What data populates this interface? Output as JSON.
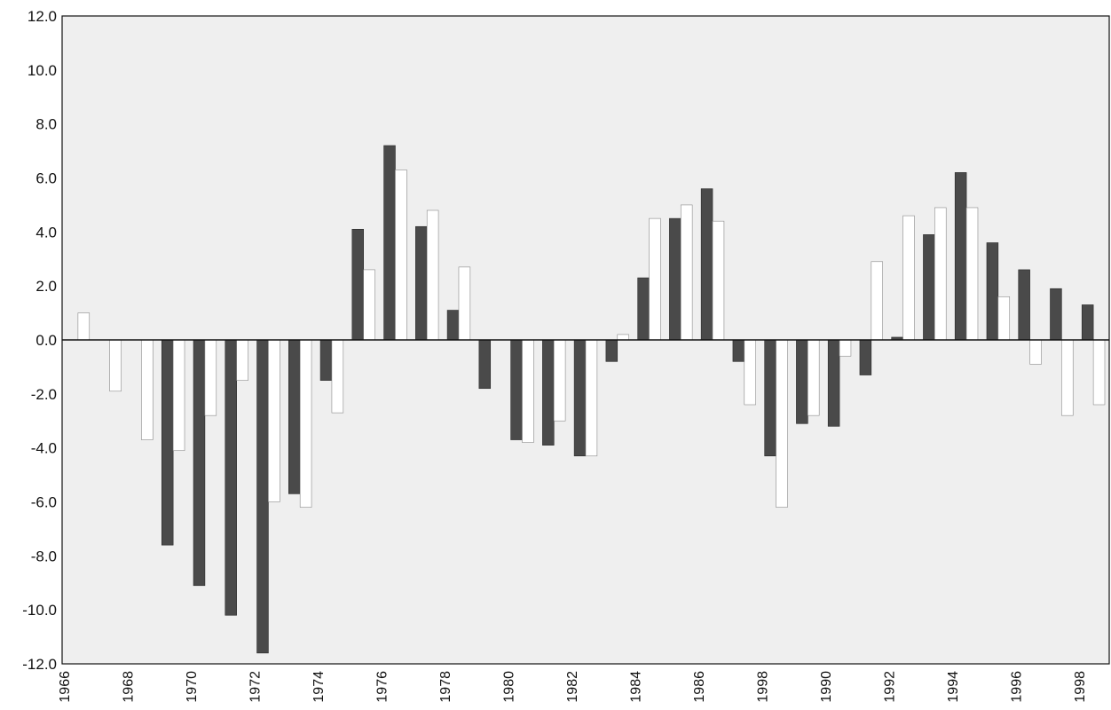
{
  "chart_data": {
    "type": "bar",
    "title": "",
    "xlabel": "",
    "ylabel": "",
    "ylim": [
      -12,
      12
    ],
    "yticks": [
      12,
      10,
      8,
      6,
      4,
      2,
      0,
      -2,
      -4,
      -6,
      -8,
      -10,
      -12
    ],
    "ytick_labels": [
      "12.0",
      "10.0",
      "8.0",
      "6.0",
      "4.0",
      "2.0",
      "0.0",
      "-2.0",
      "-4.0",
      "-6.0",
      "-8.0",
      "-10.0",
      "-12.0"
    ],
    "categories": [
      "1966",
      "1967",
      "1968",
      "1969",
      "1970",
      "1971",
      "1972",
      "1973",
      "1974",
      "1975",
      "1976",
      "1977",
      "1978",
      "1979",
      "1980",
      "1981",
      "1982",
      "1983",
      "1984",
      "1985",
      "1986",
      "1987",
      "1998",
      "1989",
      "1990",
      "1991",
      "1992",
      "1993",
      "1994",
      "1995",
      "1996",
      "1997",
      "1998"
    ],
    "tick_label_indices": [
      0,
      2,
      4,
      6,
      8,
      10,
      12,
      14,
      16,
      18,
      20,
      22,
      24,
      26,
      28,
      30,
      32
    ],
    "series": [
      {
        "color": "#4a4a4a",
        "values": [
          0,
          0,
          0,
          -7.6,
          -9.1,
          -10.2,
          -11.6,
          -5.7,
          -1.5,
          4.1,
          7.2,
          4.2,
          1.1,
          -1.8,
          -3.7,
          -3.9,
          -4.3,
          -0.8,
          2.3,
          4.5,
          5.6,
          -0.8,
          -4.3,
          -3.1,
          -3.2,
          -1.3,
          0.1,
          3.9,
          6.2,
          3.6,
          2.6,
          1.9,
          1.3
        ]
      },
      {
        "color": "#ffffff",
        "values": [
          1.0,
          -1.9,
          -3.7,
          -4.1,
          -2.8,
          -1.5,
          -6.0,
          -6.2,
          -2.7,
          2.6,
          6.3,
          4.8,
          2.7,
          0,
          -3.8,
          -3.0,
          -4.3,
          0.2,
          4.5,
          5.0,
          4.4,
          -2.4,
          -6.2,
          -2.8,
          -0.6,
          2.9,
          4.6,
          4.9,
          4.9,
          1.6,
          -0.9,
          -2.8,
          -2.4
        ]
      }
    ],
    "grid": false,
    "legend": "none"
  }
}
